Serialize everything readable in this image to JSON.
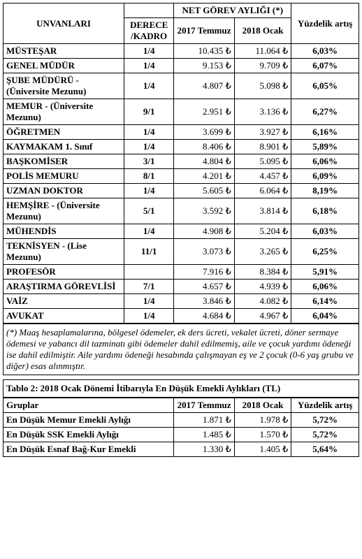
{
  "table1": {
    "headers": {
      "unvanlari": "UNVANLARI",
      "derece": "DERECE /KADRO",
      "netgorev": "NET GÖREV AYLIĞI (*)",
      "c2017": "2017 Temmuz",
      "c2018": "2018 Ocak",
      "pct": "Yüzdelik artış"
    },
    "rows": [
      {
        "title": "MÜSTEŞAR",
        "derece": "1/4",
        "v2017": "10.435 ₺",
        "v2018": "11.064 ₺",
        "pct": "6,03%"
      },
      {
        "title": "GENEL MÜDÜR",
        "derece": "1/4",
        "v2017": "9.153 ₺",
        "v2018": "9.709 ₺",
        "pct": "6,07%"
      },
      {
        "title": "ŞUBE MÜDÜRÜ - (Üniversite Mezunu)",
        "derece": "1/4",
        "v2017": "4.807 ₺",
        "v2018": "5.098 ₺",
        "pct": "6,05%"
      },
      {
        "title": "MEMUR - (Üniversite Mezunu)",
        "derece": "9/1",
        "v2017": "2.951 ₺",
        "v2018": "3.136 ₺",
        "pct": "6,27%"
      },
      {
        "title": "ÖĞRETMEN",
        "derece": "1/4",
        "v2017": "3.699 ₺",
        "v2018": "3.927 ₺",
        "pct": "6,16%"
      },
      {
        "title": "KAYMAKAM 1. Sınıf",
        "derece": "1/4",
        "v2017": "8.406 ₺",
        "v2018": "8.901 ₺",
        "pct": "5,89%"
      },
      {
        "title": "BAŞKOMİSER",
        "derece": "3/1",
        "v2017": "4.804 ₺",
        "v2018": "5.095 ₺",
        "pct": "6,06%"
      },
      {
        "title": "POLİS MEMURU",
        "derece": "8/1",
        "v2017": "4.201 ₺",
        "v2018": "4.457 ₺",
        "pct": "6,09%"
      },
      {
        "title": "UZMAN DOKTOR",
        "derece": "1/4",
        "v2017": "5.605 ₺",
        "v2018": "6.064 ₺",
        "pct": "8,19%"
      },
      {
        "title": "HEMŞİRE - (Üniversite Mezunu)",
        "derece": "5/1",
        "v2017": "3.592 ₺",
        "v2018": "3.814 ₺",
        "pct": "6,18%"
      },
      {
        "title": "MÜHENDİS",
        "derece": "1/4",
        "v2017": "4.908 ₺",
        "v2018": "5.204 ₺",
        "pct": "6,03%"
      },
      {
        "title": "TEKNİSYEN - (Lise Mezunu)",
        "derece": "11/1",
        "v2017": "3.073 ₺",
        "v2018": "3.265 ₺",
        "pct": "6,25%"
      },
      {
        "title": "PROFESÖR",
        "derece": "",
        "v2017": "7.916 ₺",
        "v2018": "8.384 ₺",
        "pct": "5,91%"
      },
      {
        "title": "ARAŞTIRMA GÖREVLİSİ",
        "derece": "7/1",
        "v2017": "4.657 ₺",
        "v2018": "4.939 ₺",
        "pct": "6,06%"
      },
      {
        "title": "VAİZ",
        "derece": "1/4",
        "v2017": "3.846 ₺",
        "v2018": "4.082 ₺",
        "pct": "6,14%"
      },
      {
        "title": "AVUKAT",
        "derece": "1/4",
        "v2017": "4.684 ₺",
        "v2018": "4.967 ₺",
        "pct": "6,04%"
      }
    ],
    "footnote": "(*) Maaş hesaplamalarına, bölgesel ödemeler, ek ders ücreti, vekalet ücreti, döner sermaye ödemesi ve yabancı dil tazminatı gibi ödemeler dahil edilmemiş, aile ve çocuk yardımı ödeneği ise dahil edilmiştir. Aile yardımı ödeneği hesabında çalışmayan eş ve 2 çocuk (0-6 yaş grubu ve diğer) esas alınmıştır."
  },
  "table2": {
    "caption": "Tablo 2: 2018 Ocak Dönemi İtibarıyla En Düşük Emekli Aylıkları (TL)",
    "headers": {
      "gruplar": "Gruplar",
      "c2017": "2017 Temmuz",
      "c2018": "2018 Ocak",
      "pct": "Yüzdelik artış"
    },
    "rows": [
      {
        "title": "En Düşük Memur Emekli Aylığı",
        "v2017": "1.871 ₺",
        "v2018": "1.978 ₺",
        "pct": "5,72%"
      },
      {
        "title": "En Düşük SSK Emekli Aylığı",
        "v2017": "1.485 ₺",
        "v2018": "1.570 ₺",
        "pct": "5,72%"
      },
      {
        "title": "En Düşük Esnaf Bağ-Kur Emekli",
        "v2017": "1.330 ₺",
        "v2018": "1.405 ₺",
        "pct": "5,64%"
      }
    ]
  }
}
